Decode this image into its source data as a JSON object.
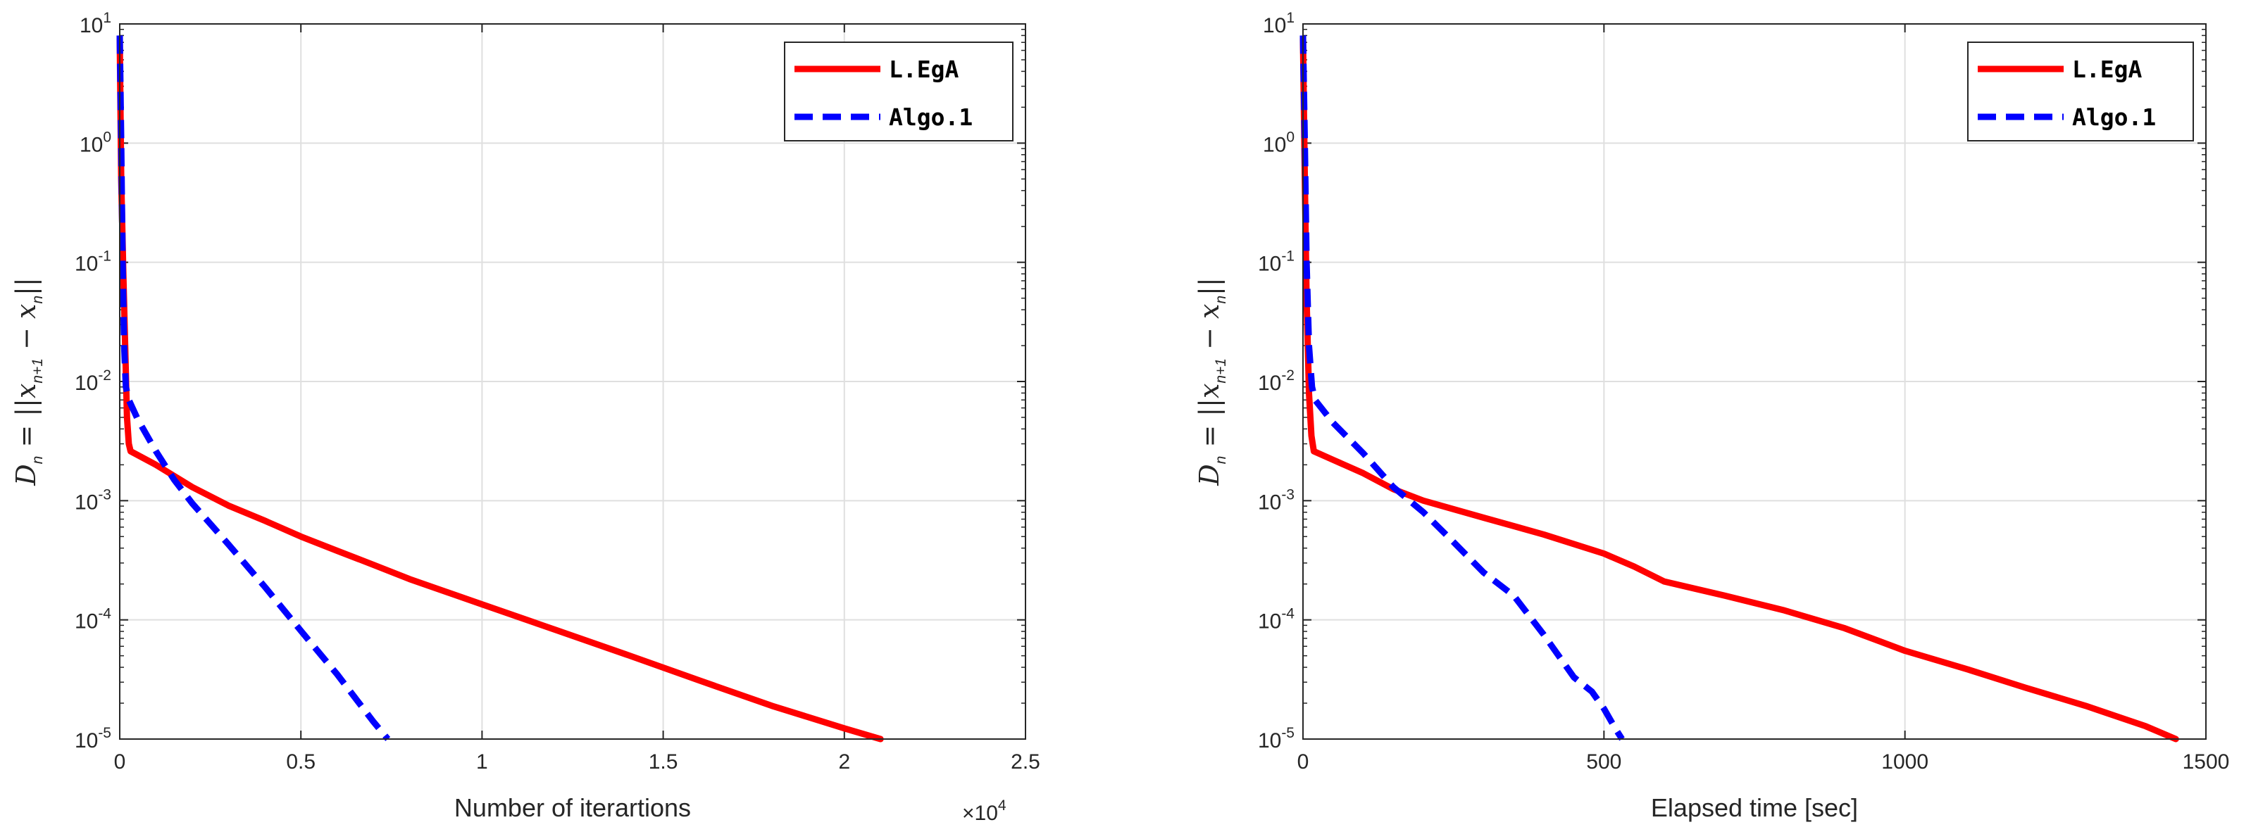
{
  "chart_data": [
    {
      "type": "line",
      "yscale": "log",
      "xlabel": "Number of iterartions",
      "ylabel": "D_n = ||x_{n+1} - x_n||",
      "xlim": [
        0,
        25000
      ],
      "ylim": [
        1e-05,
        10
      ],
      "x_ticks": [
        0,
        0.5,
        1,
        1.5,
        2,
        2.5
      ],
      "x_tick_labels": [
        "0",
        "0.5",
        "1",
        "1.5",
        "2",
        "2.5"
      ],
      "x_exponent_label": "×10",
      "x_exponent_power": "4",
      "y_tick_exponents": [
        "1",
        "0",
        "-1",
        "-2",
        "-3",
        "-4",
        "-5"
      ],
      "y_tick_base": "10",
      "grid": true,
      "legend_position": "top-right",
      "series": [
        {
          "name": "L.EgA",
          "color": "#ff0000",
          "style": "solid",
          "x": [
            0,
            40,
            100,
            150,
            200,
            250,
            300,
            1000,
            2000,
            3000,
            4000,
            5000,
            6000,
            7000,
            8000,
            10000,
            12000,
            14000,
            16000,
            18000,
            20000,
            21000
          ],
          "y": [
            7.5,
            0.5,
            0.08,
            0.02,
            0.005,
            0.003,
            0.0026,
            0.002,
            0.0013,
            0.00091,
            0.00068,
            0.0005,
            0.00038,
            0.00029,
            0.00022,
            0.000135,
            8.3e-05,
            5.1e-05,
            3.1e-05,
            1.9e-05,
            1.23e-05,
            1e-05
          ]
        },
        {
          "name": "Algo.1",
          "color": "#0000ff",
          "style": "dashed",
          "x": [
            0,
            40,
            80,
            120,
            170,
            250,
            500,
            1000,
            1500,
            2000,
            3000,
            4000,
            5000,
            6000,
            7000,
            7400
          ],
          "y": [
            8.0,
            1.0,
            0.1,
            0.02,
            0.009,
            0.007,
            0.0048,
            0.0026,
            0.0015,
            0.00095,
            0.00043,
            0.00019,
            8.1e-05,
            3.5e-05,
            1.4e-05,
            1e-05
          ]
        }
      ]
    },
    {
      "type": "line",
      "yscale": "log",
      "xlabel": "Elapsed time [sec]",
      "ylabel": "D_n = ||x_{n+1} - x_n||",
      "xlim": [
        0,
        1500
      ],
      "ylim": [
        1e-05,
        10
      ],
      "x_ticks": [
        0,
        500,
        1000,
        1500
      ],
      "x_tick_labels": [
        "0",
        "500",
        "1000",
        "1500"
      ],
      "y_tick_exponents": [
        "1",
        "0",
        "-1",
        "-2",
        "-3",
        "-4",
        "-5"
      ],
      "y_tick_base": "10",
      "grid": true,
      "legend_position": "top-right",
      "series": [
        {
          "name": "L.EgA",
          "color": "#ff0000",
          "style": "solid",
          "x": [
            0,
            3,
            6,
            10,
            14,
            18,
            50,
            100,
            150,
            200,
            300,
            400,
            500,
            550,
            600,
            700,
            800,
            900,
            1000,
            1100,
            1200,
            1300,
            1400,
            1450
          ],
          "y": [
            7.5,
            0.5,
            0.05,
            0.008,
            0.0035,
            0.0026,
            0.0022,
            0.0017,
            0.00125,
            0.001,
            0.00072,
            0.00052,
            0.00036,
            0.00028,
            0.00021,
            0.00016,
            0.00012,
            8.5e-05,
            5.5e-05,
            3.9e-05,
            2.7e-05,
            1.9e-05,
            1.28e-05,
            1e-05
          ]
        },
        {
          "name": "Algo.1",
          "color": "#0000ff",
          "style": "dashed",
          "x": [
            0,
            3,
            6,
            10,
            15,
            20,
            50,
            100,
            150,
            200,
            250,
            300,
            350,
            400,
            450,
            480,
            500,
            520,
            530
          ],
          "y": [
            8.0,
            1.0,
            0.1,
            0.02,
            0.009,
            0.007,
            0.0045,
            0.0025,
            0.0013,
            0.0008,
            0.00045,
            0.00025,
            0.00016,
            7.5e-05,
            3.3e-05,
            2.5e-05,
            1.8e-05,
            1.2e-05,
            1e-05
          ]
        }
      ]
    }
  ]
}
